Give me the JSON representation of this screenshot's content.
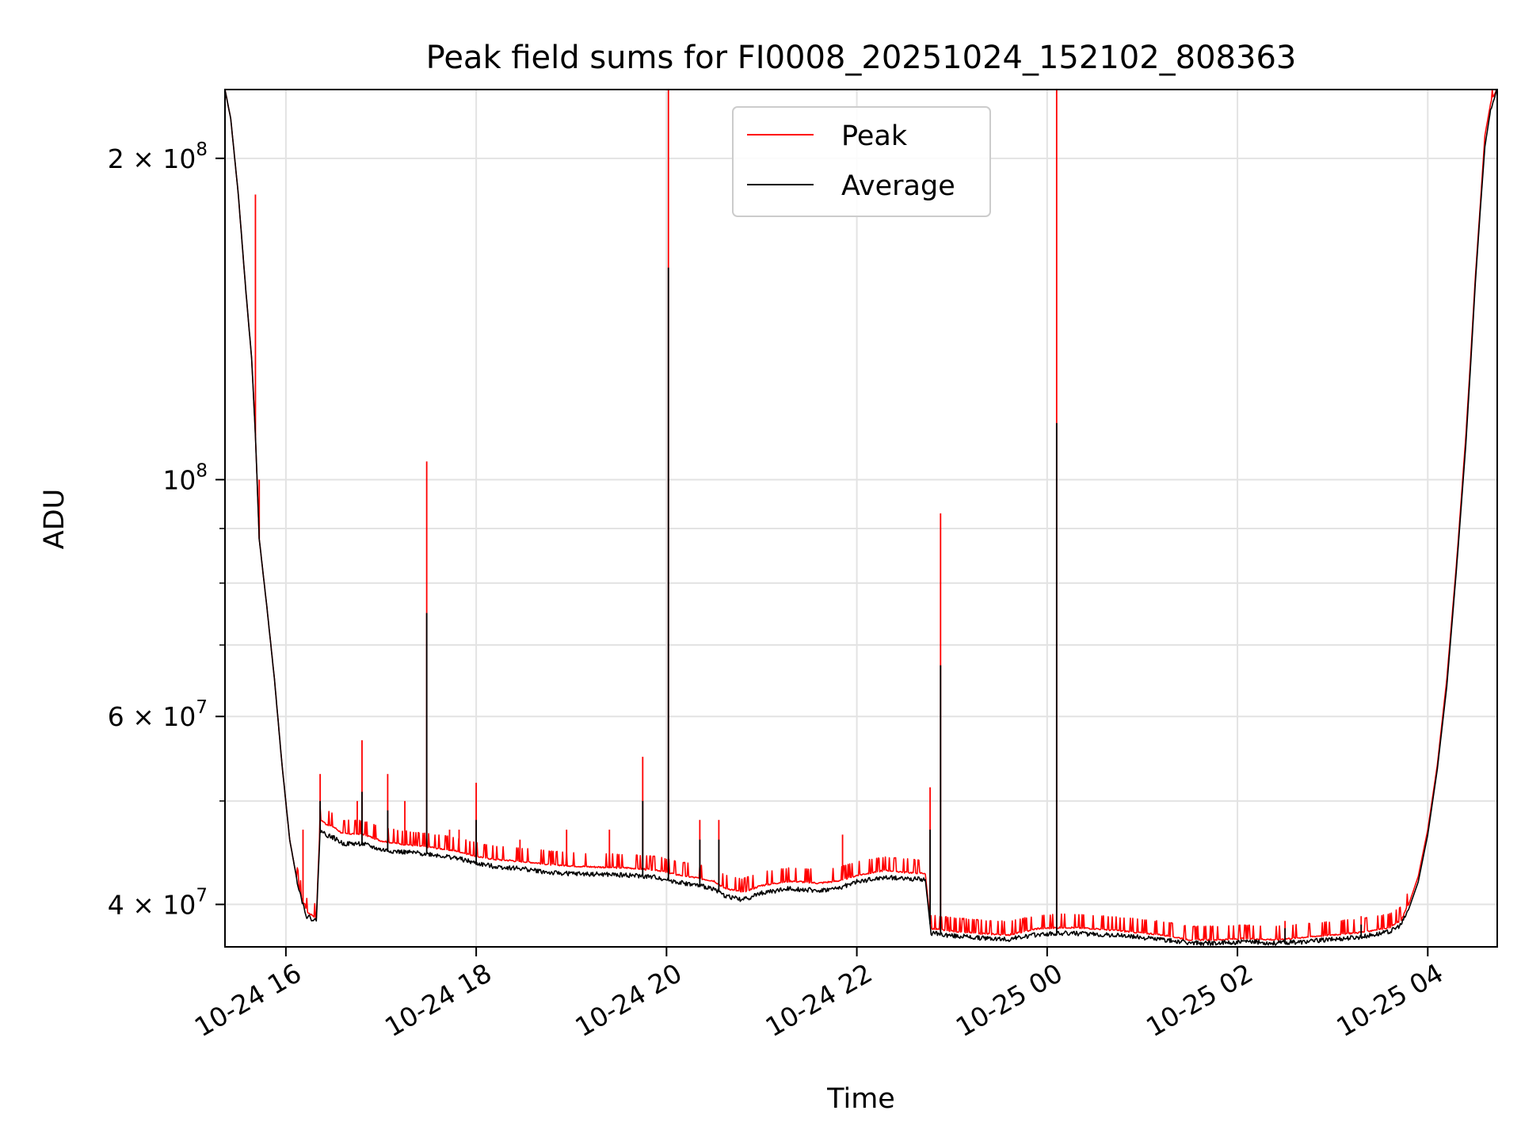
{
  "chart_data": {
    "type": "line",
    "title": "Peak field sums for FI0008_20251024_152102_808363",
    "xlabel": "Time",
    "ylabel": "ADU",
    "yscale": "log",
    "xlim": [
      15.36,
      28.73
    ],
    "ylim": [
      36500000,
      232000000
    ],
    "grid": true,
    "legend_position": "top-center",
    "x_ticks": [
      {
        "value": 16,
        "label": "10-24 16"
      },
      {
        "value": 18,
        "label": "10-24 18"
      },
      {
        "value": 20,
        "label": "10-24 20"
      },
      {
        "value": 22,
        "label": "10-24 22"
      },
      {
        "value": 24,
        "label": "10-25 00"
      },
      {
        "value": 26,
        "label": "10-25 02"
      },
      {
        "value": 28,
        "label": "10-25 04"
      }
    ],
    "y_ticks": [
      {
        "value": 40000000,
        "base": "4 × 10",
        "exp": "7"
      },
      {
        "value": 60000000,
        "base": "6 × 10",
        "exp": "7"
      },
      {
        "value": 100000000,
        "base": "10",
        "exp": "8"
      },
      {
        "value": 200000000,
        "base": "2 × 10",
        "exp": "8"
      }
    ],
    "y_minor_ticks": [
      50000000,
      70000000,
      80000000,
      90000000,
      300000000
    ],
    "series": [
      {
        "name": "Peak",
        "color": "#ff0000",
        "points": [
          [
            15.36,
            232000000
          ],
          [
            15.42,
            218000000
          ],
          [
            15.5,
            185000000
          ],
          [
            15.58,
            150000000
          ],
          [
            15.64,
            130000000
          ],
          [
            15.68,
            110000000
          ],
          [
            15.72,
            88000000
          ],
          [
            15.8,
            76000000
          ],
          [
            15.88,
            65000000
          ],
          [
            15.96,
            54000000
          ],
          [
            16.04,
            46000000
          ],
          [
            16.12,
            42000000
          ],
          [
            16.18,
            40000000
          ],
          [
            16.2,
            40000000
          ],
          [
            16.22,
            39300000
          ],
          [
            16.32,
            38800000
          ],
          [
            16.36,
            48000000
          ],
          [
            16.42,
            47500000
          ],
          [
            16.5,
            47200000
          ],
          [
            16.6,
            46500000
          ],
          [
            16.8,
            46500000
          ],
          [
            17.0,
            45800000
          ],
          [
            17.2,
            45500000
          ],
          [
            17.5,
            45200000
          ],
          [
            17.8,
            44800000
          ],
          [
            18.0,
            44300000
          ],
          [
            18.2,
            44000000
          ],
          [
            18.5,
            43800000
          ],
          [
            18.8,
            43500000
          ],
          [
            19.2,
            43300000
          ],
          [
            19.6,
            43200000
          ],
          [
            19.9,
            43000000
          ],
          [
            20.1,
            42600000
          ],
          [
            20.3,
            42300000
          ],
          [
            20.5,
            42000000
          ],
          [
            20.6,
            41400000
          ],
          [
            20.8,
            41000000
          ],
          [
            21.0,
            41600000
          ],
          [
            21.3,
            42000000
          ],
          [
            21.6,
            41800000
          ],
          [
            21.8,
            42000000
          ],
          [
            22.0,
            42500000
          ],
          [
            22.3,
            43000000
          ],
          [
            22.5,
            42800000
          ],
          [
            22.72,
            42700000
          ],
          [
            22.78,
            37900000
          ],
          [
            23.0,
            37700000
          ],
          [
            23.3,
            37500000
          ],
          [
            23.6,
            37400000
          ],
          [
            23.9,
            37900000
          ],
          [
            24.2,
            38000000
          ],
          [
            24.5,
            37900000
          ],
          [
            24.8,
            37700000
          ],
          [
            25.2,
            37400000
          ],
          [
            25.5,
            37000000
          ],
          [
            25.8,
            37000000
          ],
          [
            26.1,
            37100000
          ],
          [
            26.4,
            37000000
          ],
          [
            26.7,
            37200000
          ],
          [
            27.0,
            37400000
          ],
          [
            27.3,
            37600000
          ],
          [
            27.6,
            38000000
          ],
          [
            27.72,
            38600000
          ],
          [
            27.8,
            40000000
          ],
          [
            27.9,
            42500000
          ],
          [
            28.0,
            47000000
          ],
          [
            28.1,
            54000000
          ],
          [
            28.2,
            65000000
          ],
          [
            28.3,
            83000000
          ],
          [
            28.4,
            110000000
          ],
          [
            28.45,
            130000000
          ],
          [
            28.5,
            155000000
          ],
          [
            28.55,
            180000000
          ],
          [
            28.6,
            210000000
          ],
          [
            28.66,
            225000000
          ],
          [
            28.73,
            232000000
          ]
        ],
        "spikes": [
          [
            15.68,
            185000000
          ],
          [
            15.72,
            100000000
          ],
          [
            16.18,
            47000000
          ],
          [
            16.36,
            53000000
          ],
          [
            16.75,
            50000000
          ],
          [
            16.8,
            57000000
          ],
          [
            17.07,
            53000000
          ],
          [
            17.25,
            50000000
          ],
          [
            17.48,
            104000000
          ],
          [
            17.72,
            47000000
          ],
          [
            17.82,
            47000000
          ],
          [
            18.0,
            52000000
          ],
          [
            18.46,
            46000000
          ],
          [
            18.95,
            47000000
          ],
          [
            19.4,
            47000000
          ],
          [
            19.75,
            55000000
          ],
          [
            20.02,
            232000000
          ],
          [
            20.35,
            48000000
          ],
          [
            20.55,
            48000000
          ],
          [
            21.85,
            46500000
          ],
          [
            22.77,
            51500000
          ],
          [
            22.88,
            93000000
          ],
          [
            24.1,
            232000000
          ],
          [
            26.5,
            38600000
          ],
          [
            27.3,
            39000000
          ]
        ]
      },
      {
        "name": "Average",
        "color": "#000000",
        "points": [
          [
            15.36,
            232000000
          ],
          [
            15.42,
            218000000
          ],
          [
            15.5,
            185000000
          ],
          [
            15.58,
            150000000
          ],
          [
            15.64,
            130000000
          ],
          [
            15.68,
            110000000
          ],
          [
            15.72,
            88000000
          ],
          [
            15.8,
            76000000
          ],
          [
            15.88,
            65000000
          ],
          [
            15.96,
            54000000
          ],
          [
            16.04,
            46000000
          ],
          [
            16.12,
            42000000
          ],
          [
            16.18,
            40000000
          ],
          [
            16.2,
            39500000
          ],
          [
            16.22,
            39000000
          ],
          [
            16.32,
            38600000
          ],
          [
            16.36,
            47000000
          ],
          [
            16.42,
            46500000
          ],
          [
            16.5,
            46200000
          ],
          [
            16.6,
            45600000
          ],
          [
            16.8,
            45600000
          ],
          [
            17.0,
            45000000
          ],
          [
            17.2,
            44800000
          ],
          [
            17.5,
            44600000
          ],
          [
            17.8,
            44200000
          ],
          [
            18.0,
            43700000
          ],
          [
            18.2,
            43400000
          ],
          [
            18.5,
            43200000
          ],
          [
            18.8,
            42800000
          ],
          [
            19.2,
            42700000
          ],
          [
            19.6,
            42600000
          ],
          [
            19.9,
            42400000
          ],
          [
            20.1,
            42000000
          ],
          [
            20.3,
            41700000
          ],
          [
            20.5,
            41400000
          ],
          [
            20.6,
            40800000
          ],
          [
            20.8,
            40400000
          ],
          [
            21.0,
            41000000
          ],
          [
            21.3,
            41400000
          ],
          [
            21.6,
            41200000
          ],
          [
            21.8,
            41400000
          ],
          [
            22.0,
            42000000
          ],
          [
            22.3,
            42400000
          ],
          [
            22.5,
            42300000
          ],
          [
            22.72,
            42200000
          ],
          [
            22.78,
            37600000
          ],
          [
            23.0,
            37400000
          ],
          [
            23.3,
            37200000
          ],
          [
            23.6,
            37100000
          ],
          [
            23.9,
            37500000
          ],
          [
            24.2,
            37600000
          ],
          [
            24.5,
            37500000
          ],
          [
            24.8,
            37400000
          ],
          [
            25.2,
            37100000
          ],
          [
            25.5,
            36800000
          ],
          [
            25.8,
            36800000
          ],
          [
            26.1,
            36900000
          ],
          [
            26.4,
            36800000
          ],
          [
            26.7,
            36900000
          ],
          [
            27.0,
            37100000
          ],
          [
            27.3,
            37300000
          ],
          [
            27.6,
            37700000
          ],
          [
            27.72,
            38300000
          ],
          [
            27.8,
            39600000
          ],
          [
            27.9,
            42000000
          ],
          [
            28.0,
            46500000
          ],
          [
            28.1,
            53500000
          ],
          [
            28.2,
            64000000
          ],
          [
            28.3,
            82000000
          ],
          [
            28.4,
            108000000
          ],
          [
            28.45,
            128000000
          ],
          [
            28.5,
            153000000
          ],
          [
            28.55,
            178000000
          ],
          [
            28.6,
            205000000
          ],
          [
            28.66,
            222000000
          ],
          [
            28.73,
            232000000
          ]
        ],
        "spikes": [
          [
            16.36,
            50000000
          ],
          [
            16.8,
            51000000
          ],
          [
            17.07,
            49000000
          ],
          [
            17.48,
            75000000
          ],
          [
            18.0,
            48000000
          ],
          [
            19.75,
            50000000
          ],
          [
            20.02,
            158000000
          ],
          [
            20.35,
            46000000
          ],
          [
            20.55,
            46000000
          ],
          [
            22.77,
            47000000
          ],
          [
            22.88,
            67000000
          ],
          [
            24.1,
            113000000
          ],
          [
            26.5,
            38000000
          ],
          [
            27.3,
            38300000
          ]
        ]
      }
    ]
  }
}
